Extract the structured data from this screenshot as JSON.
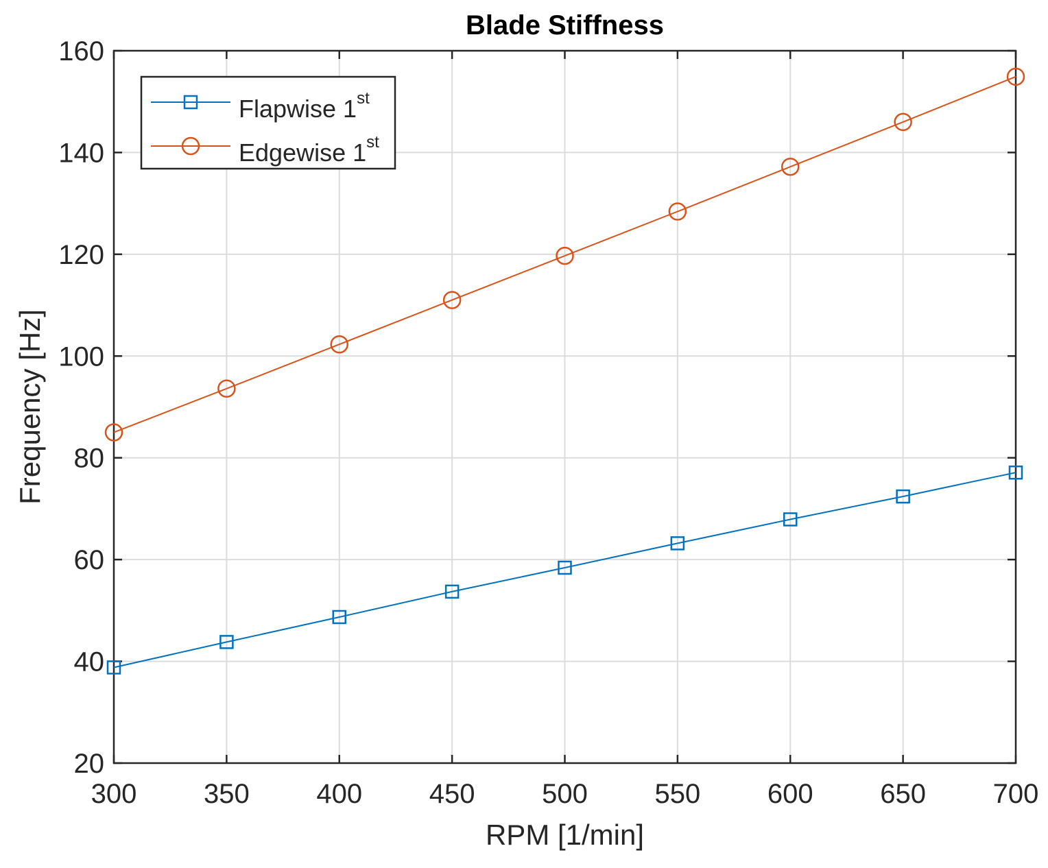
{
  "chart_data": {
    "type": "line",
    "title": "Blade Stiffness",
    "xlabel": "RPM [1/min]",
    "ylabel": "Frequency [Hz]",
    "xlim": [
      300,
      700
    ],
    "ylim": [
      20,
      160
    ],
    "xticks": [
      300,
      350,
      400,
      450,
      500,
      550,
      600,
      650,
      700
    ],
    "yticks": [
      20,
      40,
      60,
      80,
      100,
      120,
      140,
      160
    ],
    "grid": true,
    "legend_position": "top-left",
    "x": [
      300,
      350,
      400,
      450,
      500,
      550,
      600,
      650,
      700
    ],
    "series": [
      {
        "name": "Flapwise 1",
        "name_sup": "st",
        "marker": "square",
        "color": "#0072BD",
        "values": [
          38.8,
          43.8,
          48.7,
          53.7,
          58.4,
          63.2,
          67.9,
          72.4,
          77.1
        ]
      },
      {
        "name": "Edgewise 1",
        "name_sup": "st",
        "marker": "circle",
        "color": "#D95319",
        "values": [
          85.0,
          93.6,
          102.3,
          111.0,
          119.7,
          128.4,
          137.2,
          146.0,
          154.9
        ]
      }
    ]
  }
}
